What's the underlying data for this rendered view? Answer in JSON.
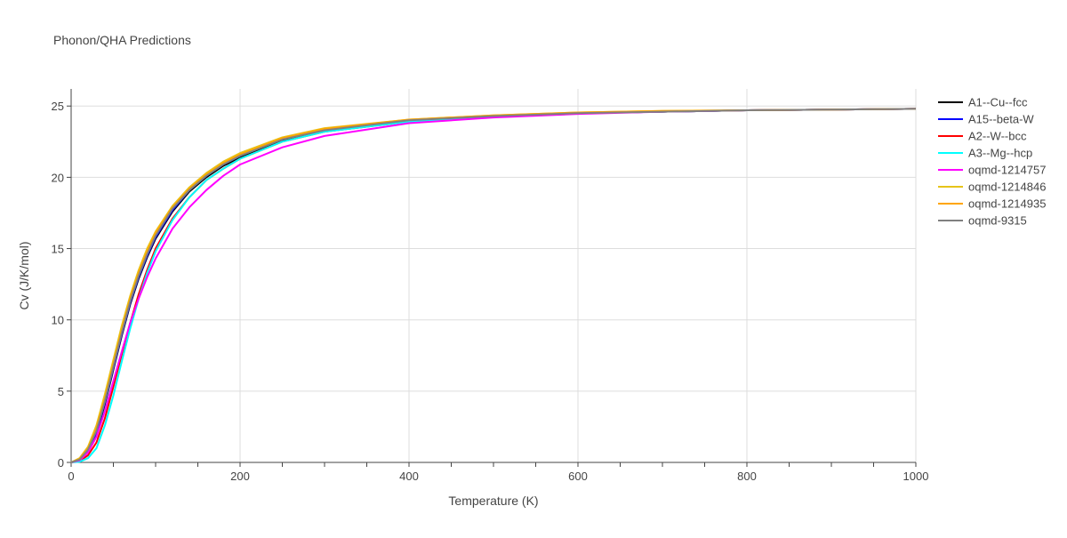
{
  "chart_data": {
    "type": "line",
    "title": "Phonon/QHA Predictions",
    "xlabel": "Temperature (K)",
    "ylabel": "Cv (J/K/mol)",
    "xlim": [
      0,
      1000
    ],
    "ylim": [
      0,
      26.2
    ],
    "xticks": [
      0,
      200,
      400,
      600,
      800,
      1000
    ],
    "yticks": [
      0,
      5,
      10,
      15,
      20,
      25
    ],
    "grid": true,
    "legend_position": "right",
    "x": [
      0,
      10,
      20,
      30,
      40,
      50,
      60,
      70,
      80,
      90,
      100,
      120,
      140,
      160,
      180,
      200,
      250,
      300,
      400,
      500,
      600,
      700,
      800,
      900,
      1000
    ],
    "series": [
      {
        "name": "A1--Cu--fcc",
        "color": "#000000",
        "values": [
          0,
          0.2,
          0.8,
          2.0,
          4.1,
          6.5,
          8.9,
          11.1,
          12.9,
          14.4,
          15.7,
          17.6,
          19.0,
          20.0,
          20.8,
          21.4,
          22.6,
          23.3,
          24.0,
          24.3,
          24.5,
          24.6,
          24.7,
          24.75,
          24.8
        ]
      },
      {
        "name": "A15--beta-W",
        "color": "#0000ff",
        "values": [
          0,
          0.2,
          0.8,
          2.1,
          4.2,
          6.6,
          9.0,
          11.2,
          13.0,
          14.5,
          15.8,
          17.7,
          19.1,
          20.1,
          20.9,
          21.5,
          22.7,
          23.35,
          24.0,
          24.3,
          24.5,
          24.6,
          24.7,
          24.75,
          24.8
        ]
      },
      {
        "name": "A2--W--bcc",
        "color": "#ff0000",
        "values": [
          0,
          0.1,
          0.5,
          1.4,
          3.1,
          5.3,
          7.6,
          9.8,
          11.8,
          13.5,
          15.0,
          17.1,
          18.6,
          19.8,
          20.6,
          21.3,
          22.5,
          23.2,
          23.9,
          24.3,
          24.5,
          24.6,
          24.7,
          24.75,
          24.8
        ]
      },
      {
        "name": "A3--Mg--hcp",
        "color": "#00ffff",
        "values": [
          0,
          0.05,
          0.3,
          1.0,
          2.6,
          4.7,
          7.1,
          9.4,
          11.5,
          13.3,
          14.8,
          17.0,
          18.6,
          19.8,
          20.6,
          21.3,
          22.5,
          23.2,
          23.9,
          24.3,
          24.5,
          24.6,
          24.7,
          24.75,
          24.8
        ]
      },
      {
        "name": "oqmd-1214757",
        "color": "#ff00ff",
        "values": [
          0,
          0.15,
          0.7,
          1.8,
          3.6,
          5.7,
          7.8,
          9.8,
          11.5,
          13.0,
          14.3,
          16.4,
          17.9,
          19.1,
          20.1,
          20.9,
          22.1,
          22.9,
          23.8,
          24.2,
          24.45,
          24.6,
          24.7,
          24.75,
          24.8
        ]
      },
      {
        "name": "oqmd-1214846",
        "color": "#e6c419",
        "values": [
          0,
          0.3,
          1.1,
          2.6,
          4.8,
          7.2,
          9.6,
          11.7,
          13.5,
          15.0,
          16.2,
          18.0,
          19.3,
          20.3,
          21.1,
          21.7,
          22.8,
          23.45,
          24.05,
          24.35,
          24.55,
          24.65,
          24.7,
          24.75,
          24.8
        ]
      },
      {
        "name": "oqmd-1214935",
        "color": "#ffa500",
        "values": [
          0,
          0.25,
          1.0,
          2.4,
          4.5,
          6.9,
          9.3,
          11.5,
          13.3,
          14.8,
          16.1,
          17.9,
          19.2,
          20.2,
          21.0,
          21.6,
          22.75,
          23.4,
          24.05,
          24.35,
          24.55,
          24.65,
          24.7,
          24.75,
          24.8
        ]
      },
      {
        "name": "oqmd-9315",
        "color": "#808080",
        "values": [
          0,
          0.2,
          0.9,
          2.2,
          4.3,
          6.7,
          9.1,
          11.3,
          13.1,
          14.6,
          15.9,
          17.8,
          19.1,
          20.1,
          20.9,
          21.5,
          22.65,
          23.3,
          24.0,
          24.3,
          24.5,
          24.6,
          24.7,
          24.75,
          24.8
        ]
      }
    ]
  }
}
